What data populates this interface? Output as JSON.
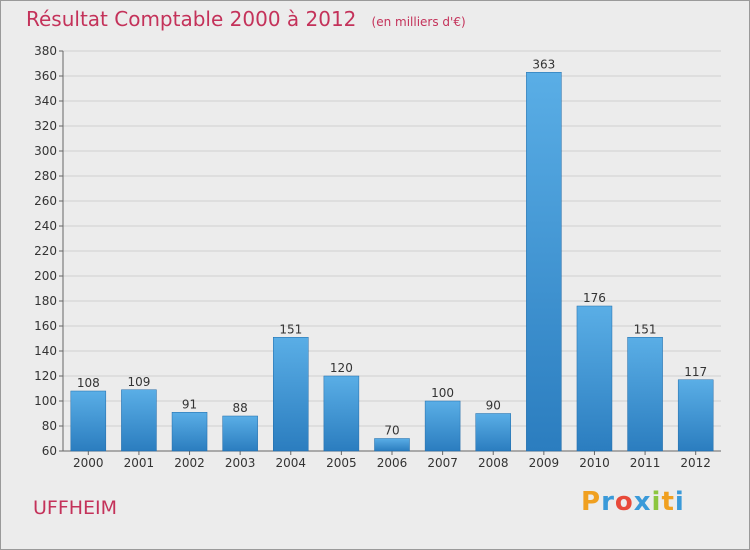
{
  "chart_data": {
    "type": "bar",
    "title": "Résultat Comptable 2000 à 2012",
    "subtitle": "(en milliers d'€)",
    "categories": [
      "2000",
      "2001",
      "2002",
      "2003",
      "2004",
      "2005",
      "2006",
      "2007",
      "2008",
      "2009",
      "2010",
      "2011",
      "2012"
    ],
    "values": [
      108,
      109,
      91,
      88,
      151,
      120,
      70,
      100,
      90,
      363,
      176,
      151,
      117
    ],
    "ylim": [
      60,
      380
    ],
    "yticks": [
      60,
      80,
      100,
      120,
      140,
      160,
      180,
      200,
      220,
      240,
      260,
      280,
      300,
      320,
      340,
      360,
      380
    ],
    "grid": true,
    "bar_color_top": "#5aaee6",
    "bar_color_bottom": "#2b7dbf"
  },
  "commune": "UFFHEIM",
  "logo": {
    "letters": [
      "P",
      "r",
      "o",
      "x",
      "i",
      "t",
      "i"
    ],
    "colors": [
      "#f0a020",
      "#3a9ad9",
      "#e84a3a",
      "#3a9ad9",
      "#8cc63f",
      "#f0a020",
      "#3a9ad9"
    ]
  },
  "colors": {
    "accent": "#c4325a",
    "background": "#ececec"
  }
}
